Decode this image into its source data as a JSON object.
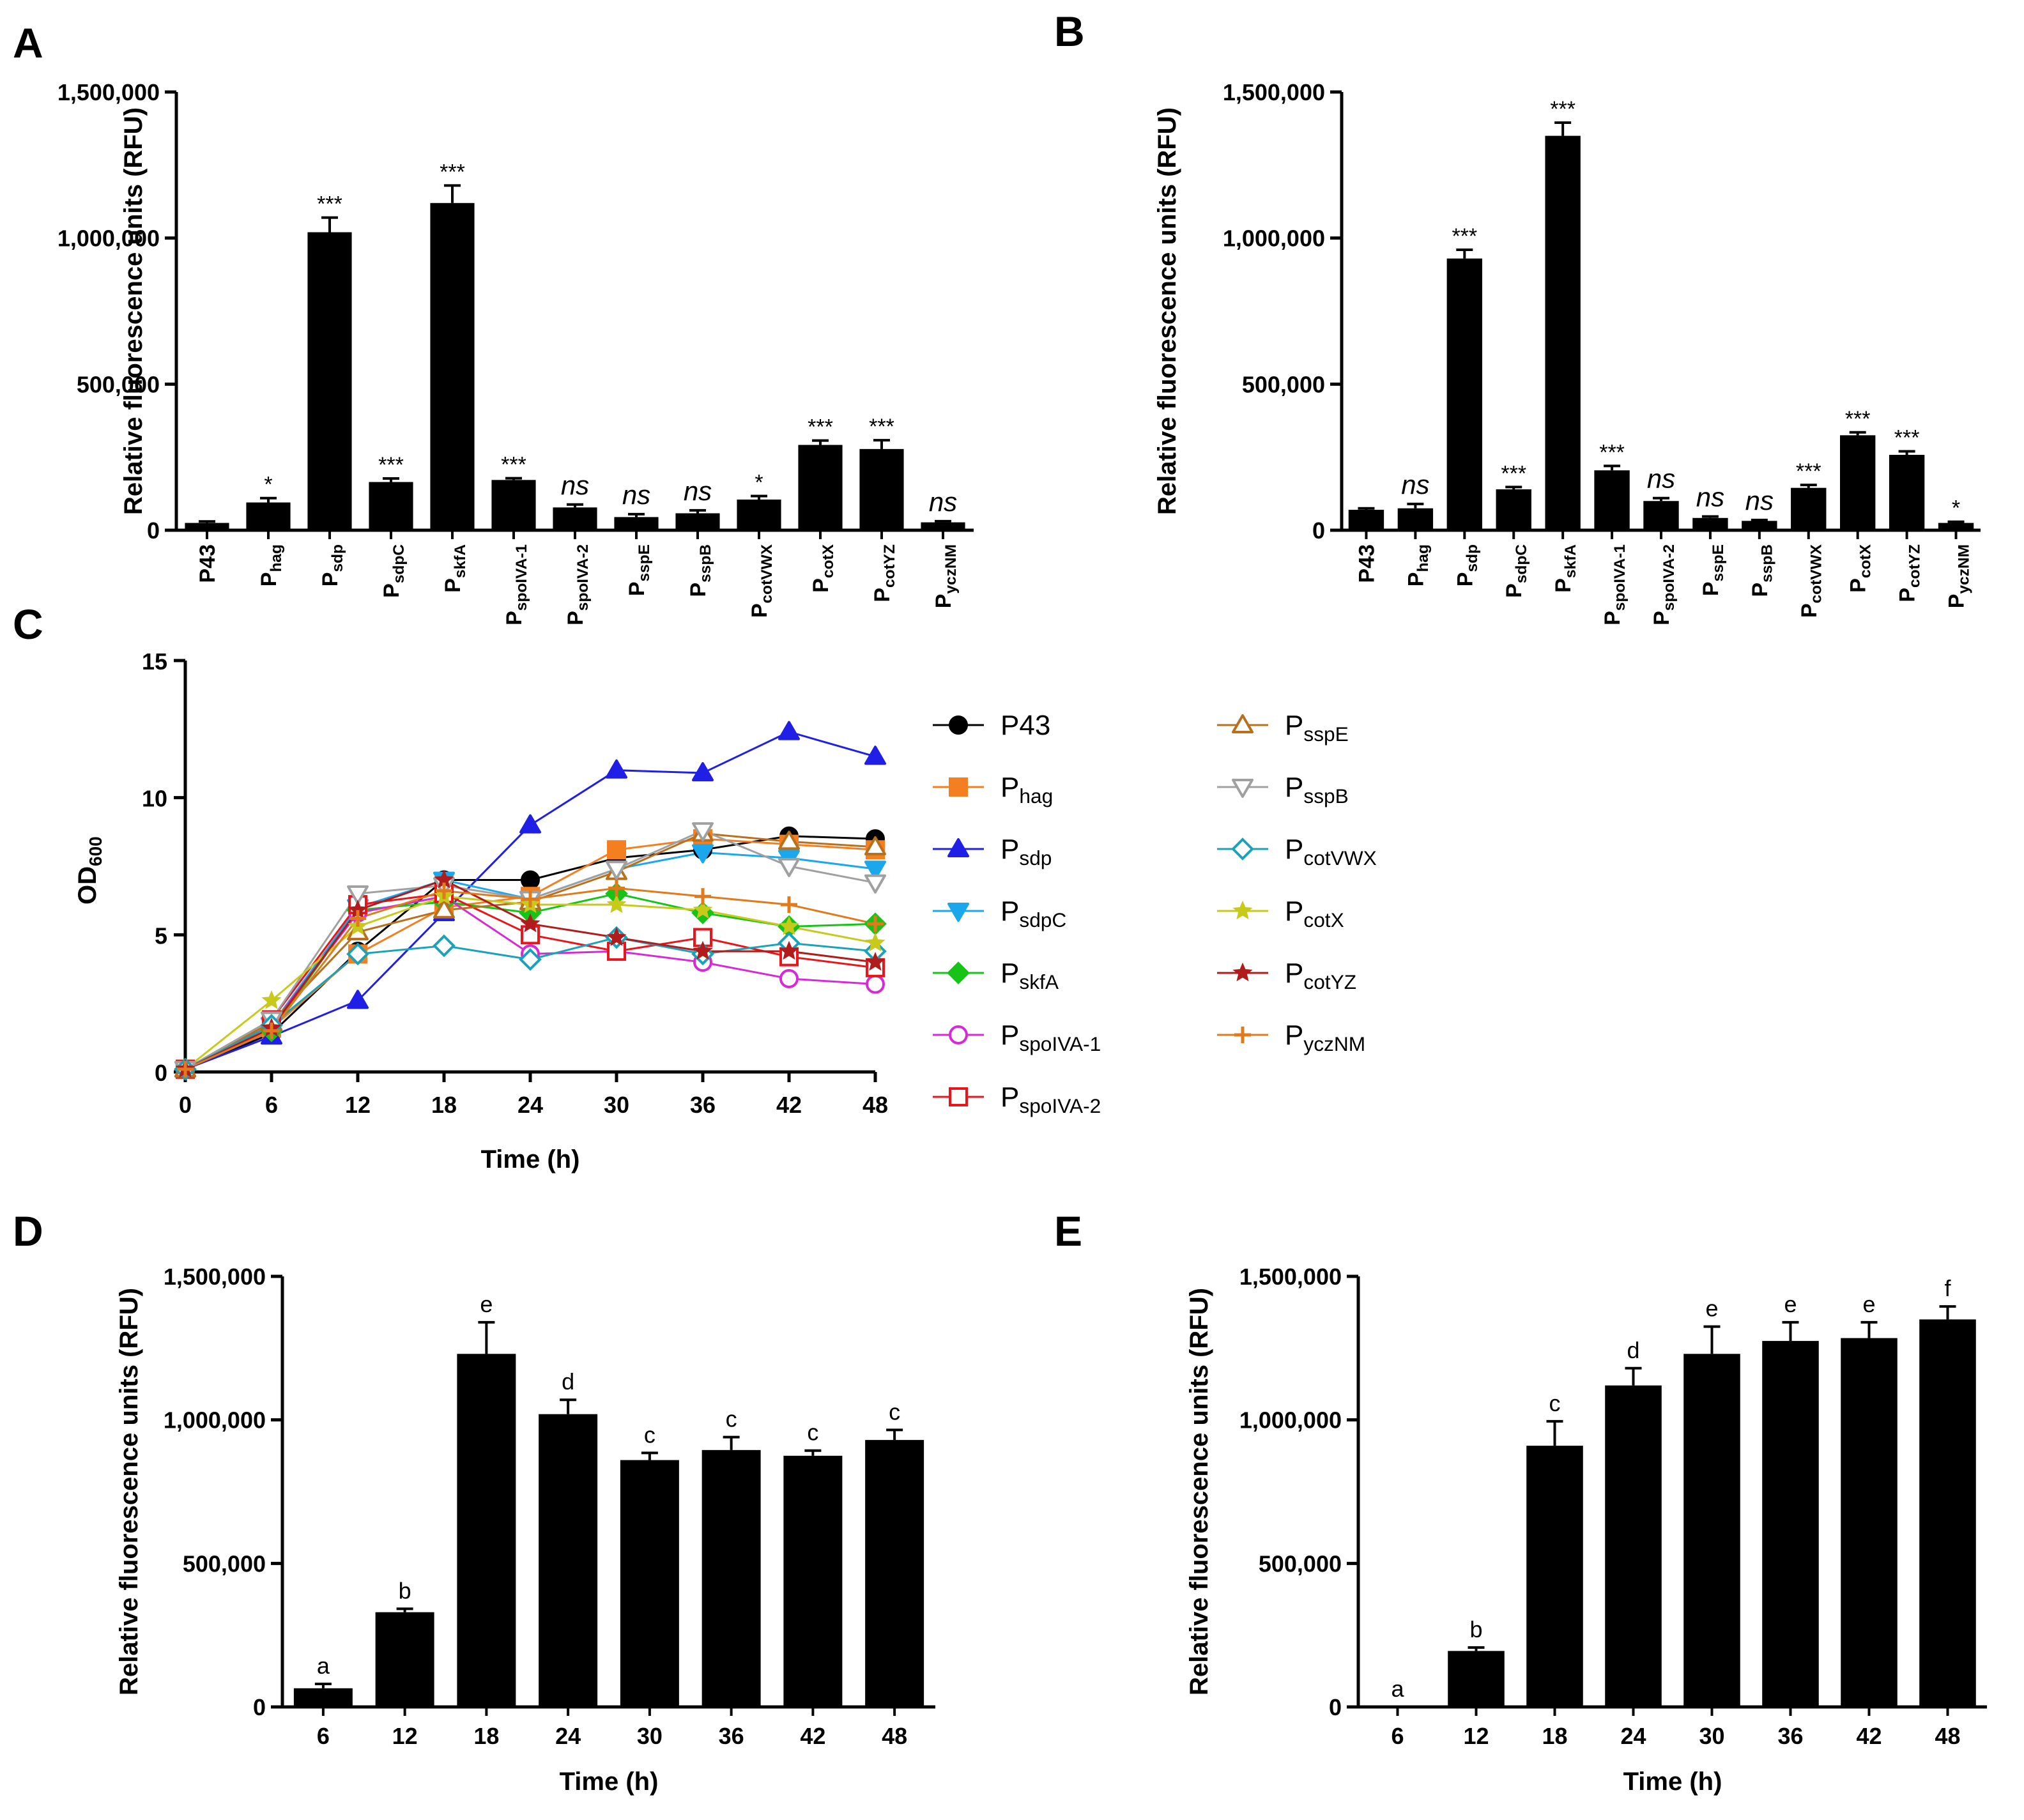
{
  "chart_data": [
    {
      "id": "A",
      "type": "bar",
      "panel_label": "A",
      "ylabel": "Relative fluorescence units (RFU)",
      "xlabel": "",
      "ylim": [
        0,
        1500000
      ],
      "yticks": [
        0,
        500000,
        1000000,
        1500000
      ],
      "ytick_labels": [
        "0",
        "500,000",
        "1,000,000",
        "1,500,000"
      ],
      "categories": [
        {
          "main": "P43",
          "sub": ""
        },
        {
          "main": "P",
          "sub": "hag"
        },
        {
          "main": "P",
          "sub": "sdp"
        },
        {
          "main": "P",
          "sub": "sdpC"
        },
        {
          "main": "P",
          "sub": "skfA"
        },
        {
          "main": "P",
          "sub": "spoIVA-1"
        },
        {
          "main": "P",
          "sub": "spoIVA-2"
        },
        {
          "main": "P",
          "sub": "sspE"
        },
        {
          "main": "P",
          "sub": "sspB"
        },
        {
          "main": "P",
          "sub": "cotVWX"
        },
        {
          "main": "P",
          "sub": "cotX"
        },
        {
          "main": "P",
          "sub": "cotYZ"
        },
        {
          "main": "P",
          "sub": "yczNM"
        }
      ],
      "values": [
        25000,
        95000,
        1020000,
        165000,
        1120000,
        172000,
        78000,
        45000,
        58000,
        105000,
        292000,
        278000,
        27000
      ],
      "errors": [
        5000,
        15000,
        50000,
        12000,
        60000,
        6000,
        10000,
        10000,
        10000,
        12000,
        15000,
        30000,
        4000
      ],
      "annotations": [
        "",
        "*",
        "***",
        "***",
        "***",
        "***",
        "ns",
        "ns",
        "ns",
        "*",
        "***",
        "***",
        "ns"
      ]
    },
    {
      "id": "B",
      "type": "bar",
      "panel_label": "B",
      "ylabel": "Relative fluorescence units (RFU)",
      "xlabel": "",
      "ylim": [
        0,
        1500000
      ],
      "yticks": [
        0,
        500000,
        1000000,
        1500000
      ],
      "ytick_labels": [
        "0",
        "500,000",
        "1,000,000",
        "1,500,000"
      ],
      "categories": [
        {
          "main": "P43",
          "sub": ""
        },
        {
          "main": "P",
          "sub": "hag"
        },
        {
          "main": "P",
          "sub": "sdp"
        },
        {
          "main": "P",
          "sub": "sdpC"
        },
        {
          "main": "P",
          "sub": "skfA"
        },
        {
          "main": "P",
          "sub": "spoIVA-1"
        },
        {
          "main": "P",
          "sub": "spoIVA-2"
        },
        {
          "main": "P",
          "sub": "sspE"
        },
        {
          "main": "P",
          "sub": "sspB"
        },
        {
          "main": "P",
          "sub": "cotVWX"
        },
        {
          "main": "P",
          "sub": "cotX"
        },
        {
          "main": "P",
          "sub": "cotYZ"
        },
        {
          "main": "P",
          "sub": "yczNM"
        }
      ],
      "values": [
        70000,
        75000,
        930000,
        140000,
        1350000,
        205000,
        100000,
        42000,
        32000,
        145000,
        325000,
        258000,
        25000
      ],
      "errors": [
        5000,
        15000,
        30000,
        8000,
        45000,
        15000,
        10000,
        5000,
        3000,
        10000,
        10000,
        12000,
        4000
      ],
      "annotations": [
        "",
        "ns",
        "***",
        "***",
        "***",
        "***",
        "ns",
        "ns",
        "ns",
        "***",
        "***",
        "***",
        "*"
      ]
    },
    {
      "id": "C",
      "type": "line",
      "panel_label": "C",
      "xlabel": "Time (h)",
      "ylabel_main": "OD",
      "ylabel_sub": "600",
      "x": [
        0,
        6,
        12,
        18,
        24,
        30,
        36,
        42,
        48
      ],
      "xlim": [
        0,
        48
      ],
      "ylim": [
        0,
        15
      ],
      "yticks": [
        0,
        5,
        10,
        15
      ],
      "legend_position": "right",
      "series": [
        {
          "main": "P43",
          "sub": "",
          "color": "#000000",
          "marker": "circle-filled",
          "values": [
            0.1,
            1.4,
            4.4,
            7.0,
            7.0,
            7.8,
            8.1,
            8.6,
            8.5
          ]
        },
        {
          "main": "P",
          "sub": "hag",
          "color": "#f47f20",
          "marker": "square-filled",
          "values": [
            0.1,
            1.6,
            4.3,
            6.0,
            6.4,
            8.1,
            8.5,
            8.3,
            8.1
          ]
        },
        {
          "main": "P",
          "sub": "sdp",
          "color": "#1f1fe6",
          "marker": "triangle-filled",
          "values": [
            0.1,
            1.3,
            2.6,
            5.8,
            9.0,
            11.0,
            10.9,
            12.4,
            11.5
          ]
        },
        {
          "main": "P",
          "sub": "sdpC",
          "color": "#1aa7ec",
          "marker": "triangle-down-filled",
          "values": [
            0.1,
            1.7,
            6.0,
            7.0,
            6.3,
            7.4,
            8.0,
            7.8,
            7.4
          ]
        },
        {
          "main": "P",
          "sub": "skfA",
          "color": "#17c317",
          "marker": "diamond-filled",
          "values": [
            0.1,
            1.5,
            5.9,
            6.2,
            5.8,
            6.5,
            5.8,
            5.3,
            5.4
          ]
        },
        {
          "main": "P",
          "sub": "spoIVA-1",
          "color": "#d62ad6",
          "marker": "circle-open",
          "values": [
            0.1,
            1.7,
            5.8,
            6.4,
            4.3,
            4.4,
            4.0,
            3.4,
            3.2
          ]
        },
        {
          "main": "P",
          "sub": "spoIVA-2",
          "color": "#e8151b",
          "marker": "square-open",
          "values": [
            0.1,
            1.9,
            6.1,
            6.5,
            5.0,
            4.4,
            4.9,
            4.2,
            3.8
          ]
        },
        {
          "main": "P",
          "sub": "sspE",
          "color": "#b8701c",
          "marker": "triangle-open",
          "values": [
            0.1,
            1.8,
            5.1,
            5.9,
            6.2,
            7.3,
            8.7,
            8.4,
            8.2
          ]
        },
        {
          "main": "P",
          "sub": "sspB",
          "color": "#a0a0a0",
          "marker": "triangle-down-open",
          "values": [
            0.1,
            1.9,
            6.5,
            6.8,
            6.3,
            7.4,
            8.8,
            7.5,
            6.9
          ]
        },
        {
          "main": "P",
          "sub": "cotVWX",
          "color": "#1aa2b8",
          "marker": "diamond-open",
          "values": [
            0.1,
            1.7,
            4.3,
            4.6,
            4.1,
            4.9,
            4.3,
            4.7,
            4.4
          ]
        },
        {
          "main": "P",
          "sub": "cotX",
          "color": "#c7c91b",
          "marker": "star",
          "values": [
            0.1,
            2.6,
            5.3,
            6.4,
            6.1,
            6.1,
            5.9,
            5.3,
            4.7
          ]
        },
        {
          "main": "P",
          "sub": "cotYZ",
          "color": "#b01c1c",
          "marker": "star",
          "values": [
            0.1,
            1.6,
            5.9,
            7.0,
            5.4,
            4.9,
            4.4,
            4.4,
            4.0
          ]
        },
        {
          "main": "P",
          "sub": "yczNM",
          "color": "#e07a1a",
          "marker": "plus",
          "values": [
            0.1,
            1.5,
            5.6,
            6.6,
            6.3,
            6.7,
            6.4,
            6.1,
            5.4
          ]
        }
      ]
    },
    {
      "id": "D",
      "type": "bar",
      "panel_label": "D",
      "ylabel": "Relative fluorescence units (RFU)",
      "xlabel": "Time (h)",
      "ylim": [
        0,
        1500000
      ],
      "yticks": [
        0,
        500000,
        1000000,
        1500000
      ],
      "ytick_labels": [
        "0",
        "500,000",
        "1,000,000",
        "1,500,000"
      ],
      "categories": [
        "6",
        "12",
        "18",
        "24",
        "30",
        "36",
        "42",
        "48"
      ],
      "values": [
        65000,
        330000,
        1230000,
        1020000,
        860000,
        895000,
        875000,
        930000
      ],
      "errors": [
        15000,
        12000,
        110000,
        50000,
        25000,
        45000,
        18000,
        35000
      ],
      "annotations": [
        "a",
        "b",
        "e",
        "d",
        "c",
        "c",
        "c",
        "c"
      ]
    },
    {
      "id": "E",
      "type": "bar",
      "panel_label": "E",
      "ylabel": "Relative fluorescence units (RFU)",
      "xlabel": "Time (h)",
      "ylim": [
        0,
        1500000
      ],
      "yticks": [
        0,
        500000,
        1000000,
        1500000
      ],
      "ytick_labels": [
        "0",
        "500,000",
        "1,000,000",
        "1,500,000"
      ],
      "categories": [
        "6",
        "12",
        "18",
        "24",
        "30",
        "36",
        "42",
        "48"
      ],
      "values": [
        0,
        195000,
        910000,
        1120000,
        1230000,
        1275000,
        1285000,
        1350000
      ],
      "errors": [
        0,
        12000,
        85000,
        60000,
        95000,
        65000,
        55000,
        45000
      ],
      "annotations": [
        "a",
        "b",
        "c",
        "d",
        "e",
        "e",
        "e",
        "f"
      ]
    }
  ]
}
